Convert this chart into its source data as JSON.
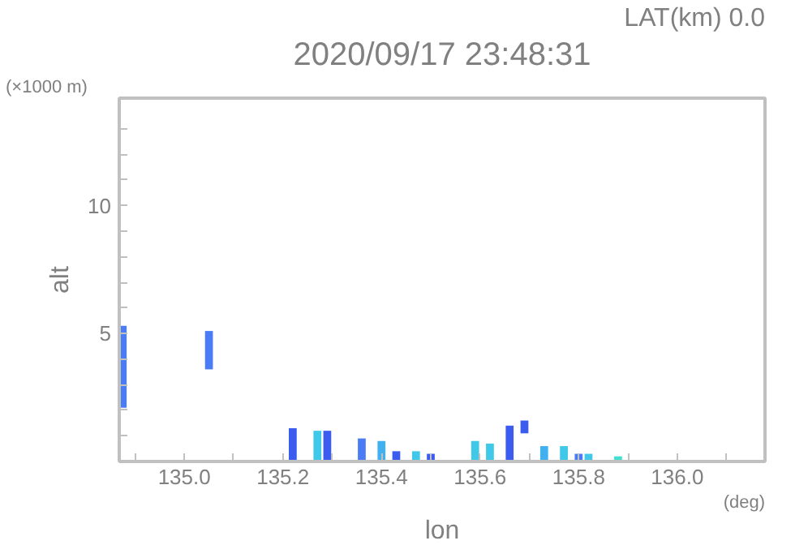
{
  "chart_data": {
    "type": "bar",
    "title": "2020/09/17 23:48:31",
    "subtitle": "LAT(km) 0.0",
    "xlabel": "lon",
    "ylabel": "alt",
    "annotations": [
      "(×1000 m)",
      "(deg)"
    ],
    "x": [
      134.875,
      135.05,
      135.22,
      135.27,
      135.29,
      135.36,
      135.4,
      135.43,
      135.47,
      135.5,
      135.59,
      135.62,
      135.66,
      135.69,
      135.73,
      135.77,
      135.8,
      135.82,
      135.88
    ],
    "base": [
      2.1,
      3.6,
      0,
      0,
      0,
      0,
      0,
      0,
      0,
      0,
      0,
      0,
      0,
      1.1,
      0,
      0,
      0,
      0,
      0
    ],
    "values": [
      3.2,
      1.5,
      1.3,
      1.2,
      1.2,
      0.9,
      0.8,
      0.4,
      0.4,
      0.3,
      0.8,
      0.7,
      1.4,
      0.5,
      0.6,
      0.6,
      0.3,
      0.3,
      0.2
    ],
    "colors": [
      "#4a7cf5",
      "#4a7cf5",
      "#3c5cf0",
      "#40c8e8",
      "#3c5cf0",
      "#4a7cf5",
      "#40b0f0",
      "#3c5cf0",
      "#40c8e8",
      "#3c5cf0",
      "#40c8e8",
      "#40c8e8",
      "#3c5cf0",
      "#3c5cf0",
      "#40b0f0",
      "#40c8e8",
      "#4a7cf5",
      "#40c8e8",
      "#40e0d0"
    ],
    "xlim": [
      134.868,
      136.178
    ],
    "ylim": [
      0,
      14.2
    ],
    "xticks": [
      {
        "value": 134.9,
        "label": null
      },
      {
        "value": 135.0,
        "label": "135.0"
      },
      {
        "value": 135.1,
        "label": null
      },
      135.2,
      {
        "value": 135.3,
        "label": null
      },
      135.4,
      {
        "value": 135.5,
        "label": null
      },
      135.6,
      {
        "value": 135.7,
        "label": null
      },
      135.8,
      {
        "value": 135.9,
        "label": null
      },
      {
        "value": 136.0,
        "label": "136.0"
      },
      {
        "value": 136.1,
        "label": null
      }
    ],
    "yticks": [
      {
        "value": 1,
        "label": null
      },
      {
        "value": 2,
        "label": null
      },
      {
        "value": 3,
        "label": null
      },
      {
        "value": 4,
        "label": null
      },
      5,
      {
        "value": 6,
        "label": null
      },
      {
        "value": 7,
        "label": null
      },
      {
        "value": 8,
        "label": null
      },
      {
        "value": 9,
        "label": null
      },
      10,
      {
        "value": 11,
        "label": null
      },
      {
        "value": 12,
        "label": null
      },
      {
        "value": 13,
        "label": null
      }
    ],
    "grid": false
  }
}
